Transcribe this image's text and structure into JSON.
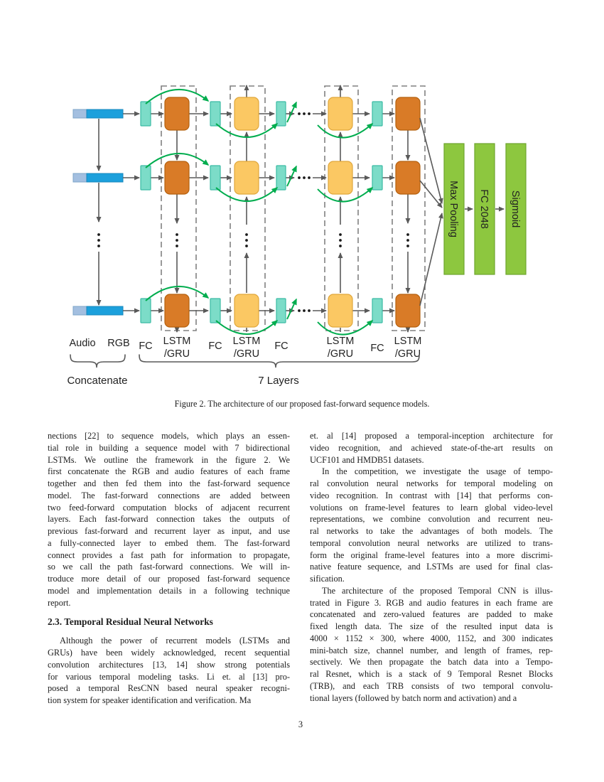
{
  "figure": {
    "caption": "Figure 2. The architecture of our proposed fast-forward sequence models.",
    "labels": {
      "audio": "Audio",
      "rgb": "RGB",
      "fc": "FC",
      "lstm": "LSTM",
      "gru": "/GRU",
      "concatenate": "Concatenate",
      "layers": "7 Layers",
      "max_pooling": "Max Pooling",
      "fc_2048": "FC 2048",
      "sigmoid": "Sigmoid"
    },
    "colors": {
      "orange": "#d97b27",
      "yellow": "#fbc863",
      "teal": "#7cdcc8",
      "green_bar": "#8dc73f",
      "green_bar_border": "#6fa52f",
      "blue_light": "#a3bfe0",
      "blue_dark": "#1ca0dc",
      "arrow_gray": "#595959",
      "arrow_green": "#00ad4e",
      "dash": "#808080"
    }
  },
  "content": {
    "left": {
      "para1": [
        "nections [22] to sequence models, which plays an essen-",
        "tial role in building a sequence model with 7 bidirectional",
        "LSTMs.  We outline the framework in the figure 2.  We",
        "first concatenate the RGB and audio features of each frame",
        "together and then fed them into the fast-forward sequence",
        "model.  The fast-forward connections are added between",
        "two feed-forward computation blocks of adjacent recurrent",
        "layers.  Each fast-forward connection takes the outputs of",
        "previous fast-forward and recurrent layer as input, and use",
        "a fully-connected layer to embed them.  The fast-forward",
        "connect provides a fast path for information to propagate,",
        "so we call the path fast-forward connections.  We will in-",
        "troduce more detail of our proposed fast-forward sequence",
        "model and implementation details in a following technique",
        "report."
      ],
      "heading": "2.3. Temporal Residual Neural Networks",
      "para2": [
        "Although the power of recurrent models (LSTMs and",
        "GRUs) have been widely acknowledged, recent sequential",
        "convolution architectures [13, 14] show strong potentials",
        "for various temporal modeling tasks.  Li et. al  [13] pro-",
        "posed a temporal ResCNN based neural speaker recogni-",
        "tion system for speaker identification and verification.  Ma"
      ]
    },
    "right": {
      "para1": [
        "et. al [14] proposed a temporal-inception architecture for",
        "video recognition, and achieved state-of-the-art results on",
        "UCF101 and HMDB51 datasets."
      ],
      "para2": [
        "In the competition, we investigate the usage of tempo-",
        "ral convolution neural networks for temporal modeling on",
        "video recognition.  In contrast with [14] that performs con-",
        "volutions on frame-level features to learn global video-level",
        "representations, we combine convolution and recurrent neu-",
        "ral networks to take the advantages of both models.  The",
        "temporal convolution neural networks are utilized to trans-",
        "form the original frame-level features into a more discrimi-",
        "native feature sequence, and LSTMs are used for final clas-",
        "sification."
      ],
      "para3": [
        "The architecture of the proposed Temporal CNN is illus-",
        "trated in Figure 3. RGB and audio features in each frame are",
        "concatenated and zero-valued features are padded to make",
        "fixed length data.  The size of the resulted input data is",
        "4000 × 1152 × 300, where 4000, 1152, and 300 indicates",
        "mini-batch size, channel number, and length of frames, rep-",
        "sectively.  We then propagate the batch data into a Tempo-",
        "ral Resnet, which is a stack of 9 Temporal Resnet Blocks",
        "(TRB), and each TRB consists of two temporal convolu-",
        "tional layers (followed by batch norm and activation) and a"
      ]
    }
  },
  "page": {
    "number": "3"
  }
}
